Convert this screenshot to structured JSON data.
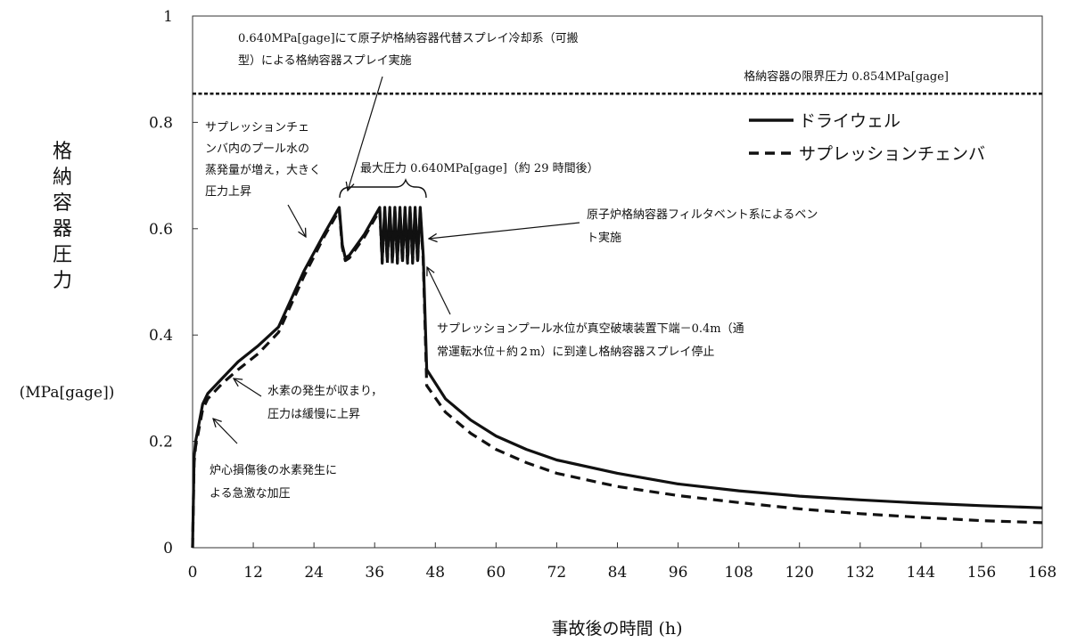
{
  "chart_data": {
    "type": "line",
    "xlabel": "事故後の時間 (h)",
    "ylabel": "格納容器圧力",
    "yunit": "(MPa[gage])",
    "xlim": [
      0,
      168
    ],
    "ylim": [
      0,
      1
    ],
    "xticks": [
      0,
      12,
      24,
      36,
      48,
      60,
      72,
      84,
      96,
      108,
      120,
      132,
      144,
      156,
      168
    ],
    "yticks": [
      {
        "value": 0,
        "label": "0"
      },
      {
        "value": 0.2,
        "label": "0.2"
      },
      {
        "value": 0.4,
        "label": "0.4"
      },
      {
        "value": 0.6,
        "label": "0.6"
      },
      {
        "value": 0.8,
        "label": "0.8"
      },
      {
        "value": 1,
        "label": "1"
      }
    ],
    "grid": false,
    "legend_position": "top-right",
    "limit_line": {
      "value": 0.854,
      "label": "格納容器の限界圧力 0.854MPa[gage]"
    },
    "series": [
      {
        "name": "ドライウェル",
        "style": "solid",
        "points": [
          [
            0,
            0
          ],
          [
            0.3,
            0.17
          ],
          [
            0.6,
            0.2
          ],
          [
            1,
            0.22
          ],
          [
            2,
            0.27
          ],
          [
            3,
            0.29
          ],
          [
            6,
            0.32
          ],
          [
            9,
            0.35
          ],
          [
            13,
            0.38
          ],
          [
            17,
            0.415
          ],
          [
            22,
            0.52
          ],
          [
            26,
            0.59
          ],
          [
            29,
            0.64
          ],
          [
            29.6,
            0.57
          ],
          [
            30.2,
            0.545
          ],
          [
            31,
            0.55
          ],
          [
            34,
            0.59
          ],
          [
            37,
            0.64
          ],
          [
            37.5,
            0.54
          ],
          [
            38,
            0.64
          ],
          [
            38.5,
            0.54
          ],
          [
            39,
            0.64
          ],
          [
            39.5,
            0.54
          ],
          [
            40,
            0.64
          ],
          [
            40.5,
            0.54
          ],
          [
            41,
            0.64
          ],
          [
            41.5,
            0.54
          ],
          [
            42,
            0.64
          ],
          [
            42.5,
            0.54
          ],
          [
            43,
            0.64
          ],
          [
            43.5,
            0.54
          ],
          [
            44,
            0.64
          ],
          [
            44.5,
            0.54
          ],
          [
            45,
            0.64
          ],
          [
            45.6,
            0.55
          ],
          [
            46.3,
            0.335
          ],
          [
            50,
            0.28
          ],
          [
            55,
            0.24
          ],
          [
            60,
            0.21
          ],
          [
            66,
            0.185
          ],
          [
            72,
            0.165
          ],
          [
            84,
            0.14
          ],
          [
            96,
            0.12
          ],
          [
            108,
            0.107
          ],
          [
            120,
            0.097
          ],
          [
            132,
            0.09
          ],
          [
            144,
            0.084
          ],
          [
            156,
            0.079
          ],
          [
            168,
            0.075
          ]
        ]
      },
      {
        "name": "サプレッションチェンバ",
        "style": "dashed",
        "points": [
          [
            0,
            0
          ],
          [
            0.3,
            0.16
          ],
          [
            0.6,
            0.19
          ],
          [
            1,
            0.21
          ],
          [
            2,
            0.26
          ],
          [
            3,
            0.28
          ],
          [
            6,
            0.31
          ],
          [
            9,
            0.335
          ],
          [
            13,
            0.365
          ],
          [
            17,
            0.405
          ],
          [
            22,
            0.51
          ],
          [
            26,
            0.585
          ],
          [
            29,
            0.635
          ],
          [
            29.6,
            0.565
          ],
          [
            30.2,
            0.54
          ],
          [
            31,
            0.545
          ],
          [
            34,
            0.585
          ],
          [
            37,
            0.635
          ],
          [
            37.5,
            0.535
          ],
          [
            38,
            0.635
          ],
          [
            38.5,
            0.535
          ],
          [
            39,
            0.635
          ],
          [
            39.5,
            0.535
          ],
          [
            40,
            0.635
          ],
          [
            40.5,
            0.535
          ],
          [
            41,
            0.635
          ],
          [
            41.5,
            0.535
          ],
          [
            42,
            0.635
          ],
          [
            42.5,
            0.535
          ],
          [
            43,
            0.635
          ],
          [
            43.5,
            0.535
          ],
          [
            44,
            0.635
          ],
          [
            44.5,
            0.535
          ],
          [
            45,
            0.635
          ],
          [
            45.6,
            0.54
          ],
          [
            46.3,
            0.305
          ],
          [
            50,
            0.255
          ],
          [
            55,
            0.215
          ],
          [
            60,
            0.185
          ],
          [
            66,
            0.16
          ],
          [
            72,
            0.14
          ],
          [
            84,
            0.115
          ],
          [
            96,
            0.098
          ],
          [
            108,
            0.085
          ],
          [
            120,
            0.073
          ],
          [
            132,
            0.064
          ],
          [
            144,
            0.057
          ],
          [
            156,
            0.051
          ],
          [
            168,
            0.047
          ]
        ]
      }
    ],
    "annotations": [
      {
        "id": "spray-start",
        "lines": [
          "0.640MPa[gage]にて原子炉格納容器代替スプレイ冷却系（可搬",
          "型）による格納容器スプレイ実施"
        ]
      },
      {
        "id": "pool-evap",
        "lines": [
          "サプレッションチェ",
          "ンバ内のプール水の",
          "蒸発量が増え，大きく",
          "圧力上昇"
        ]
      },
      {
        "id": "max-pressure",
        "lines": [
          "最大圧力 0.640MPa[gage]（約 29 時間後）"
        ]
      },
      {
        "id": "vent",
        "lines": [
          "原子炉格納容器フィルタベント系によるベン",
          "ト実施"
        ]
      },
      {
        "id": "spray-stop",
        "lines": [
          "サプレッションプール水位が真空破壊装置下端－0.4m（通",
          "常運転水位＋約２m）に到達し格納容器スプレイ停止"
        ]
      },
      {
        "id": "h2-settle",
        "lines": [
          "水素の発生が収まり，",
          "圧力は緩慢に上昇"
        ]
      },
      {
        "id": "h2-rapid",
        "lines": [
          "炉心損傷後の水素発生に",
          "よる急激な加圧"
        ]
      }
    ]
  }
}
